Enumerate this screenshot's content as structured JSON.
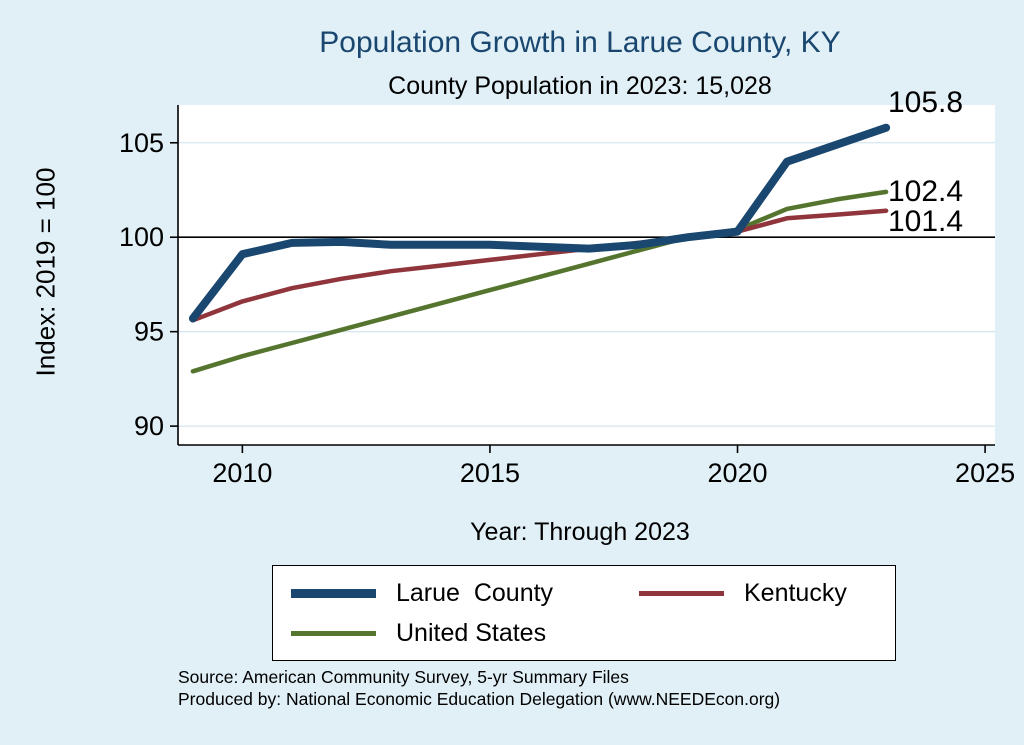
{
  "header": {
    "title": "Population Growth in Larue County, KY",
    "subtitle": "County Population in 2023: 15,028"
  },
  "axes": {
    "y_label": "Index: 2019 = 100",
    "x_label": "Year: Through 2023"
  },
  "end_labels": {
    "larue_county": "105.8",
    "united_states": "102.4",
    "kentucky": "101.4"
  },
  "legend": {
    "items": [
      {
        "label": "Larue  County",
        "color": "#1a476f",
        "thickness": 9
      },
      {
        "label": "Kentucky",
        "color": "#90353b",
        "thickness": 5
      },
      {
        "label": "United States",
        "color": "#55752f",
        "thickness": 5
      }
    ]
  },
  "footer": {
    "source_line1": "Source: American Community Survey, 5-yr Summary Files",
    "source_line2": "Produced by: National Economic Education Delegation (www.NEEDEcon.org)"
  },
  "colors": {
    "background": "#e1f0f7",
    "plot_background": "#ffffff",
    "title": "#1a476f",
    "navy": "#1a476f",
    "maroon": "#90353b",
    "olive": "#55752f",
    "grid": "#d6e6f0",
    "reference_line": "#000000"
  },
  "chart_data": {
    "type": "line",
    "title": "Population Growth in Larue County, KY",
    "subtitle": "County Population in 2023: 15,028",
    "xlabel": "Year: Through 2023",
    "ylabel": "Index: 2019 = 100",
    "x": [
      2009,
      2010,
      2011,
      2012,
      2013,
      2014,
      2015,
      2016,
      2017,
      2018,
      2019,
      2020,
      2021,
      2022,
      2023
    ],
    "series": [
      {
        "id": "united-states",
        "name": "United States",
        "color": "#55752f",
        "width": 4.5,
        "values": [
          92.9,
          93.7,
          94.4,
          95.1,
          95.8,
          96.5,
          97.2,
          97.9,
          98.6,
          99.3,
          100,
          100.4,
          101.5,
          102.0,
          102.4
        ]
      },
      {
        "id": "kentucky",
        "name": "Kentucky",
        "color": "#90353b",
        "width": 4.5,
        "values": [
          95.6,
          96.6,
          97.3,
          97.8,
          98.2,
          98.5,
          98.8,
          99.1,
          99.4,
          99.7,
          100,
          100.3,
          101.0,
          101.2,
          101.4
        ]
      },
      {
        "id": "larue-county",
        "name": "Larue County",
        "color": "#1a476f",
        "width": 8,
        "values": [
          95.7,
          99.1,
          99.7,
          99.75,
          99.6,
          99.6,
          99.6,
          99.5,
          99.4,
          99.6,
          100,
          100.3,
          104.0,
          104.9,
          105.8
        ]
      }
    ],
    "x_ticks": [
      2010,
      2015,
      2020,
      2025
    ],
    "y_ticks": [
      90,
      95,
      100,
      105
    ],
    "xlim": [
      2008.7,
      2025.2
    ],
    "ylim": [
      89,
      107
    ],
    "reference_line_y": 100,
    "grid": true,
    "legend_position": "bottom",
    "end_value_labels": {
      "larue-county": 105.8,
      "united-states": 102.4,
      "kentucky": 101.4
    }
  }
}
